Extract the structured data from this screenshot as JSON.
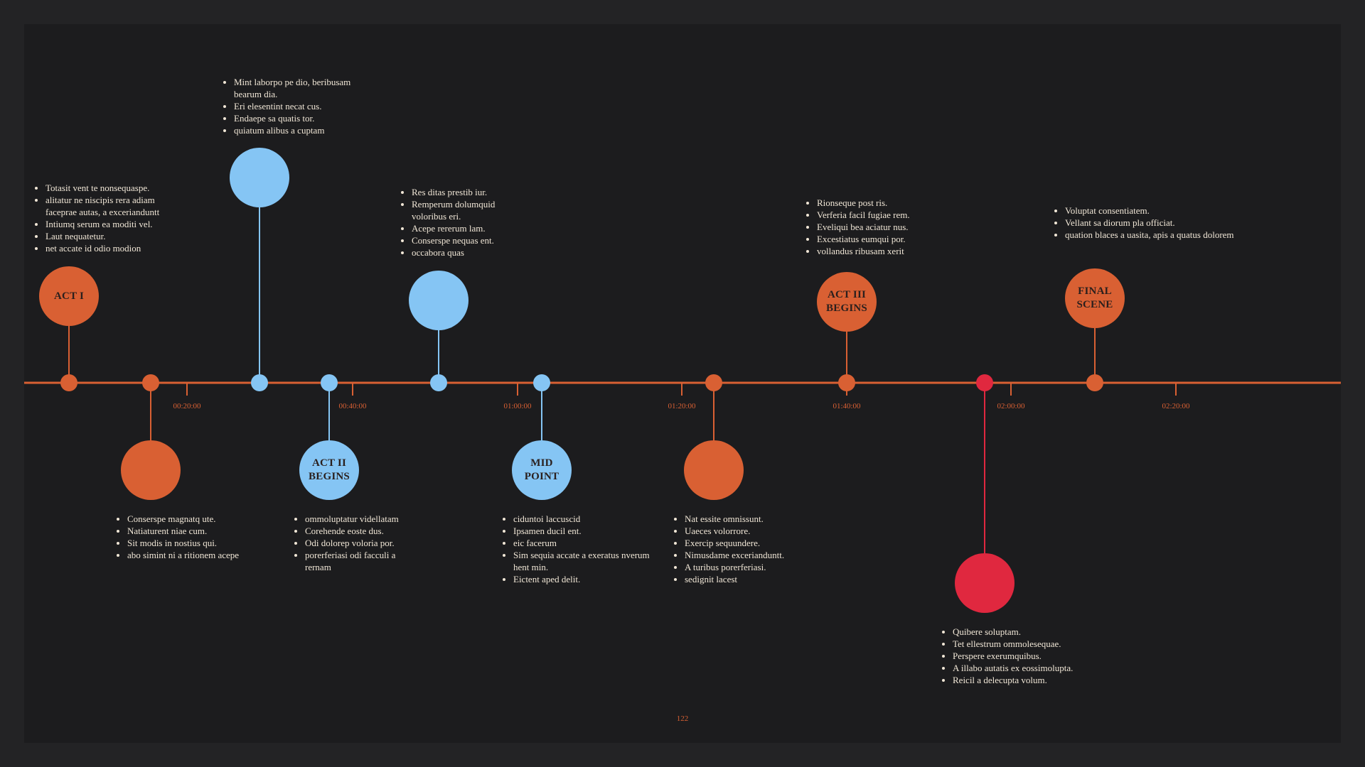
{
  "colors": {
    "orange": "#d96033",
    "blue": "#85c5f4",
    "red": "#e0283f",
    "axis": "#d96033",
    "text": "#f0e6d6"
  },
  "ticks": [
    "00:20:00",
    "00:40:00",
    "01:00:00",
    "01:20:00",
    "01:40:00",
    "02:00:00",
    "02:20:00"
  ],
  "events": [
    {
      "id": "act-1",
      "label": "ACT I",
      "color": "orange",
      "position": "above",
      "notes": [
        "Totasit vent te nonsequaspe.",
        "alitatur ne niscipis rera adiam faceprae autas, a excerianduntt",
        "Intiumq serum ea moditi vel.",
        "Laut nequatetur.",
        "net accate id odio modion"
      ]
    },
    {
      "id": "event-2",
      "label": "",
      "color": "orange",
      "position": "below",
      "notes": [
        "Conserspe magnatq ute.",
        "Natiaturent niae cum.",
        "Sit modis in nostius qui.",
        "abo simint ni a ritionem acepe"
      ]
    },
    {
      "id": "event-3",
      "label": "",
      "color": "blue",
      "position": "above",
      "notes": [
        "Mint laborpo pe dio, beribusam bearum dia.",
        "Eri elesentint necat cus.",
        "Endaepe sa quatis tor.",
        "quiatum alibus a cuptam"
      ]
    },
    {
      "id": "act-2",
      "label": "ACT II\nBEGINS",
      "color": "blue",
      "position": "below",
      "notes": [
        "ommoluptatur videllatam",
        "Corehende eoste dus.",
        "Odi dolorep voloria por.",
        "porerferiasi odi facculi a rernam"
      ]
    },
    {
      "id": "event-5",
      "label": "",
      "color": "blue",
      "position": "above",
      "notes": [
        "Res ditas prestib iur.",
        "Remperum dolumquid voloribus eri.",
        "Acepe rererum lam.",
        "Conserspe nequas ent.",
        "occabora quas"
      ]
    },
    {
      "id": "midpoint",
      "label": "MID\nPOINT",
      "color": "blue",
      "position": "below",
      "notes": [
        "ciduntoi laccuscid",
        "Ipsamen ducil ent.",
        "eic facerum",
        "Sim sequia accate a exeratus nverum hent min.",
        "Eictent aped delit."
      ]
    },
    {
      "id": "event-7",
      "label": "",
      "color": "orange",
      "position": "below",
      "notes": [
        "Nat essite omnissunt.",
        "Uaeces volorrore.",
        "Exercip sequundere.",
        "Nimusdame excerianduntt.",
        "A turibus porerferiasi.",
        "sedignit lacest"
      ]
    },
    {
      "id": "act-3",
      "label": "ACT III\nBEGINS",
      "color": "orange",
      "position": "above",
      "notes": [
        "Rionseque post ris.",
        "Verferia facil fugiae rem.",
        "Eveliqui bea aciatur nus.",
        "Excestiatus eumqui por.",
        "vollandus ribusam xerit"
      ]
    },
    {
      "id": "event-9",
      "label": "",
      "color": "red",
      "position": "below",
      "notes": [
        "Quibere soluptam.",
        "Tet ellestrum ommolesequae.",
        "Perspere exerumquibus.",
        "A illabo autatis ex eossimolupta.",
        "Reicil a delecupta volum."
      ]
    },
    {
      "id": "final-scene",
      "label": "FINAL\nSCENE",
      "color": "orange",
      "position": "above",
      "notes": [
        "Voluptat consentiatem.",
        "Vellant sa diorum pla officiat.",
        "quation blaces a uasita, apis a quatus dolorem"
      ]
    }
  ],
  "page_number": "122"
}
